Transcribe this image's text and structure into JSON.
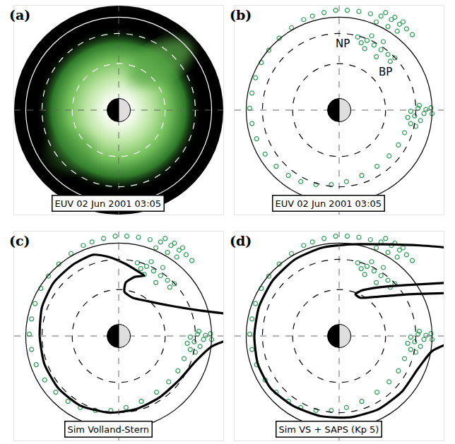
{
  "chart_data": {
    "xlim": [
      -9,
      9
    ],
    "ylim": [
      -9,
      9
    ],
    "tick_labels": false,
    "earth_radius": 1,
    "dashed_circles": [
      4,
      6.6
    ],
    "solid_circle": 8,
    "observed_points": {
      "color": "#2f9e58",
      "marker": "open circle",
      "x": [
        8.0,
        7.47,
        6.79,
        6.16,
        5.9,
        6.16,
        5.63,
        5.1,
        4.3,
        3.26,
        1.95,
        0.63,
        -0.68,
        -2.0,
        -3.3,
        -4.37,
        -5.42,
        -6.37,
        -7.1,
        -7.5,
        -7.7,
        -7.5,
        -7.2,
        -6.7,
        -6.05,
        -5.16,
        -4.1,
        -3.05,
        -2.3,
        -1.3,
        -0.3,
        0.7,
        1.7,
        2.7,
        3.6,
        4.5,
        5.2,
        5.8,
        6.3,
        4.0,
        4.8,
        5.5,
        3.2,
        4.2,
        5.0,
        1.6,
        2.4,
        3.0,
        3.6,
        4.2,
        4.8,
        2.2,
        3.2,
        4.4,
        2.8,
        1.9,
        3.8,
        6.5,
        7.0,
        6.6,
        7.3,
        7.9,
        6.9
      ],
      "y": [
        -0.3,
        0.05,
        0.16,
        -0.1,
        -0.63,
        -1.16,
        -1.95,
        -3.0,
        -3.95,
        -4.84,
        -5.63,
        -6.16,
        -6.42,
        -6.42,
        -6.16,
        -5.63,
        -4.84,
        -3.79,
        -2.47,
        -1.16,
        0.16,
        1.47,
        2.79,
        4.1,
        5.16,
        6.2,
        7.1,
        7.8,
        8.1,
        8.4,
        8.6,
        8.6,
        8.5,
        8.3,
        8.1,
        7.8,
        7.4,
        7.0,
        6.5,
        8.4,
        8.0,
        7.6,
        7.6,
        7.2,
        6.8,
        6.3,
        6.0,
        5.6,
        5.2,
        4.8,
        4.5,
        5.3,
        4.6,
        4.2,
        6.4,
        5.8,
        5.9,
        -0.5,
        -0.9,
        -1.4,
        -0.3,
        0.2,
        0.4
      ]
    },
    "panels": [
      {
        "label": "(a)",
        "caption": "EUV 02 Jun 2001 03:05",
        "type": "image"
      },
      {
        "label": "(b)",
        "caption": "EUV 02 Jun 2001 03:05",
        "type": "scatter",
        "points": true,
        "annotations": [
          {
            "text": "NP",
            "x": 0.3,
            "y": 5.7
          },
          {
            "text": "BP",
            "x": 4.0,
            "y": 3.3
          }
        ]
      },
      {
        "label": "(c)",
        "caption": "Sim Volland-Stern",
        "type": "scatter",
        "points": true,
        "curves": [
          {
            "color": "#000000",
            "x": [
              9.5,
              7,
              4.5,
              2.5,
              1.2,
              0.5,
              0.6,
              1.4,
              2.2,
              1.6,
              0.6,
              -0.8,
              -2.2,
              -4.0,
              -5.6,
              -6.6,
              -6.8,
              -6.4,
              -5.2,
              -3.3,
              -0.8,
              1.5,
              3.5,
              5.2,
              6.6,
              8.0,
              9.5
            ],
            "y": [
              1.9,
              2.2,
              2.6,
              3.0,
              3.3,
              3.8,
              4.6,
              5.1,
              5.2,
              5.6,
              6.2,
              6.8,
              7.0,
              6.1,
              4.6,
              2.5,
              0,
              -2.4,
              -4.5,
              -6.0,
              -6.6,
              -6.3,
              -5.3,
              -3.8,
              -2.2,
              -0.9,
              -0.3
            ]
          }
        ]
      },
      {
        "label": "(d)",
        "caption": "Sim VS + SAPS (Kp 5)",
        "type": "scatter",
        "points": true,
        "curves": [
          {
            "color": "#000000",
            "x": [
              9.5,
              7,
              4,
              1,
              -1.5,
              -3.8,
              -5.7,
              -6.9,
              -7.3,
              -7.0,
              -5.9,
              -4.0,
              -1.6,
              1.0,
              3.4,
              5.4,
              6.8,
              8.0,
              9.5
            ],
            "y": [
              7.6,
              7.8,
              7.9,
              7.9,
              7.6,
              6.6,
              4.8,
              2.5,
              0,
              -2.4,
              -4.5,
              -6.0,
              -6.9,
              -7.0,
              -6.3,
              -4.8,
              -2.8,
              -1.3,
              -0.6
            ]
          },
          {
            "color": "#000000",
            "x": [
              9.5,
              6,
              3.5,
              1.9,
              1.4,
              1.8,
              3.5,
              6,
              9.5
            ],
            "y": [
              4.6,
              4.4,
              4.2,
              3.9,
              3.6,
              3.3,
              3.4,
              3.6,
              3.7
            ]
          }
        ]
      }
    ]
  }
}
